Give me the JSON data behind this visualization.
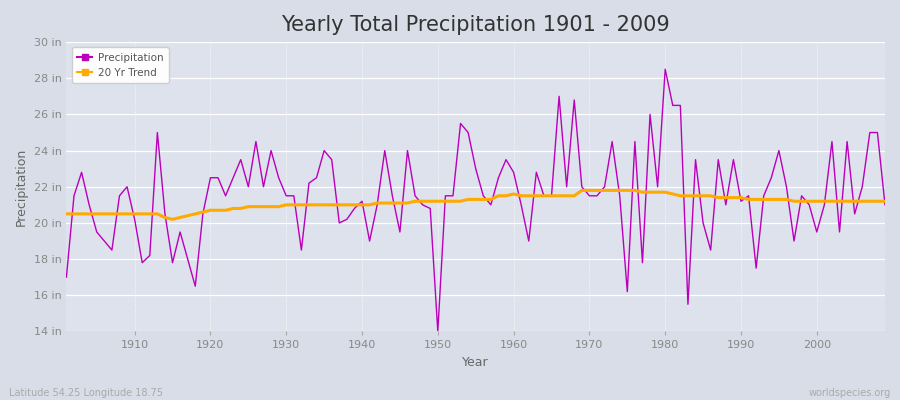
{
  "title": "Yearly Total Precipitation 1901 - 2009",
  "xlabel": "Year",
  "ylabel": "Precipitation",
  "background_color": "#d8dde8",
  "plot_bg_color": "#dde2ec",
  "precip_color": "#bb00bb",
  "trend_color": "#ffaa00",
  "ylim": [
    14,
    30
  ],
  "yticks": [
    14,
    16,
    18,
    20,
    22,
    24,
    26,
    28,
    30
  ],
  "ytick_labels": [
    "14 in",
    "16 in",
    "18 in",
    "20 in",
    "22 in",
    "24 in",
    "26 in",
    "28 in",
    "30 in"
  ],
  "xlim": [
    1901,
    2009
  ],
  "xticks": [
    1910,
    1920,
    1930,
    1940,
    1950,
    1960,
    1970,
    1980,
    1990,
    2000
  ],
  "years": [
    1901,
    1902,
    1903,
    1904,
    1905,
    1906,
    1907,
    1908,
    1909,
    1910,
    1911,
    1912,
    1913,
    1914,
    1915,
    1916,
    1917,
    1918,
    1919,
    1920,
    1921,
    1922,
    1923,
    1924,
    1925,
    1926,
    1927,
    1928,
    1929,
    1930,
    1931,
    1932,
    1933,
    1934,
    1935,
    1936,
    1937,
    1938,
    1939,
    1940,
    1941,
    1942,
    1943,
    1944,
    1945,
    1946,
    1947,
    1948,
    1949,
    1950,
    1951,
    1952,
    1953,
    1954,
    1955,
    1956,
    1957,
    1958,
    1959,
    1960,
    1961,
    1962,
    1963,
    1964,
    1965,
    1966,
    1967,
    1968,
    1969,
    1970,
    1971,
    1972,
    1973,
    1974,
    1975,
    1976,
    1977,
    1978,
    1979,
    1980,
    1981,
    1982,
    1983,
    1984,
    1985,
    1986,
    1987,
    1988,
    1989,
    1990,
    1991,
    1992,
    1993,
    1994,
    1995,
    1996,
    1997,
    1998,
    1999,
    2000,
    2001,
    2002,
    2003,
    2004,
    2005,
    2006,
    2007,
    2008,
    2009
  ],
  "precipitation": [
    17.0,
    21.5,
    22.8,
    21.0,
    19.5,
    19.0,
    18.5,
    21.5,
    22.0,
    20.2,
    17.8,
    18.2,
    25.0,
    20.5,
    17.8,
    19.5,
    18.0,
    16.5,
    20.5,
    22.5,
    22.5,
    21.5,
    22.5,
    23.5,
    22.0,
    24.5,
    22.0,
    24.0,
    22.5,
    21.5,
    21.5,
    18.5,
    22.2,
    22.5,
    24.0,
    23.5,
    20.0,
    20.2,
    20.8,
    21.2,
    19.0,
    21.0,
    24.0,
    21.5,
    19.5,
    24.0,
    21.5,
    21.0,
    20.8,
    14.0,
    21.5,
    21.5,
    25.5,
    25.0,
    23.0,
    21.5,
    21.0,
    22.5,
    23.5,
    22.8,
    21.0,
    19.0,
    22.8,
    21.5,
    21.5,
    27.0,
    22.0,
    26.8,
    22.0,
    21.5,
    21.5,
    22.0,
    24.5,
    21.5,
    16.2,
    24.5,
    17.8,
    26.0,
    22.0,
    28.5,
    26.5,
    26.5,
    15.5,
    23.5,
    20.0,
    18.5,
    23.5,
    21.0,
    23.5,
    21.2,
    21.5,
    17.5,
    21.5,
    22.5,
    24.0,
    22.0,
    19.0,
    21.5,
    21.0,
    19.5,
    21.0,
    24.5,
    19.5,
    24.5,
    20.5,
    22.0,
    25.0,
    25.0,
    21.0
  ],
  "trend": [
    20.5,
    20.5,
    20.5,
    20.5,
    20.5,
    20.5,
    20.5,
    20.5,
    20.5,
    20.5,
    20.5,
    20.5,
    20.5,
    20.3,
    20.2,
    20.3,
    20.4,
    20.5,
    20.6,
    20.7,
    20.7,
    20.7,
    20.8,
    20.8,
    20.9,
    20.9,
    20.9,
    20.9,
    20.9,
    21.0,
    21.0,
    21.0,
    21.0,
    21.0,
    21.0,
    21.0,
    21.0,
    21.0,
    21.0,
    21.0,
    21.0,
    21.1,
    21.1,
    21.1,
    21.1,
    21.1,
    21.2,
    21.2,
    21.2,
    21.2,
    21.2,
    21.2,
    21.2,
    21.3,
    21.3,
    21.3,
    21.3,
    21.5,
    21.5,
    21.6,
    21.5,
    21.5,
    21.5,
    21.5,
    21.5,
    21.5,
    21.5,
    21.5,
    21.8,
    21.8,
    21.8,
    21.8,
    21.8,
    21.8,
    21.8,
    21.8,
    21.7,
    21.7,
    21.7,
    21.7,
    21.6,
    21.5,
    21.5,
    21.5,
    21.5,
    21.5,
    21.4,
    21.4,
    21.4,
    21.4,
    21.3,
    21.3,
    21.3,
    21.3,
    21.3,
    21.3,
    21.2,
    21.2,
    21.2,
    21.2,
    21.2,
    21.2,
    21.2,
    21.2,
    21.2,
    21.2,
    21.2,
    21.2,
    21.2
  ],
  "legend_labels": [
    "Precipitation",
    "20 Yr Trend"
  ],
  "footnote_left": "Latitude 54.25 Longitude 18.75",
  "footnote_right": "worldspecies.org",
  "title_fontsize": 15,
  "label_fontsize": 9,
  "tick_fontsize": 8,
  "footnote_fontsize": 7,
  "tick_color": "#888888",
  "label_color": "#666666",
  "title_color": "#333333"
}
